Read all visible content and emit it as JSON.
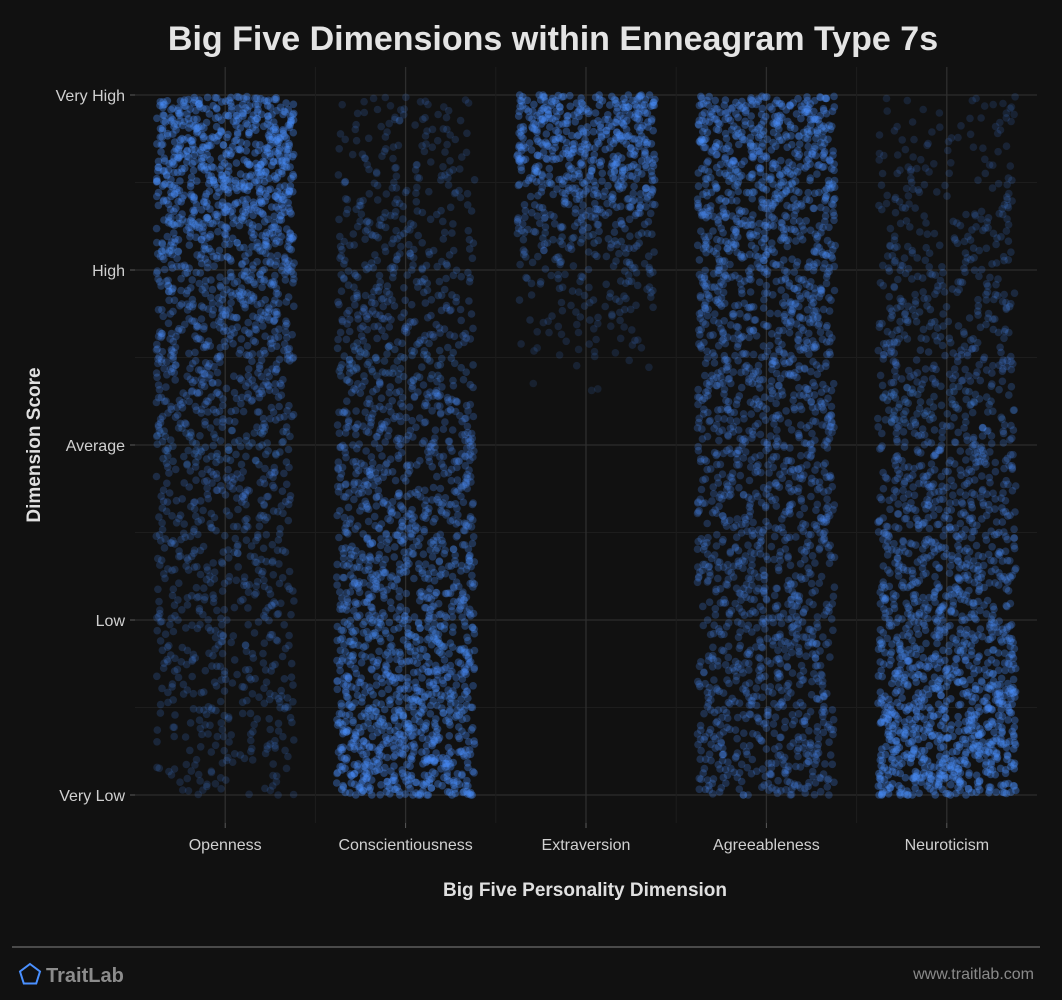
{
  "chart_data": {
    "type": "scatter",
    "title": "Big Five Dimensions within Enneagram Type 7s",
    "xlabel": "Big Five Personality Dimension",
    "ylabel": "Dimension Score",
    "categories": [
      "Openness",
      "Conscientiousness",
      "Extraversion",
      "Agreeableness",
      "Neuroticism"
    ],
    "y_ticks": [
      "Very Low",
      "Low",
      "Average",
      "High",
      "Very High"
    ],
    "ylim": [
      0,
      4
    ],
    "grid": true,
    "point_color": "#4a90ff",
    "series": [
      {
        "category": "Openness",
        "range": [
          0,
          4
        ],
        "density_profile": [
          [
            0,
            0.15
          ],
          [
            0.6,
            0.3
          ],
          [
            1.5,
            0.35
          ],
          [
            2.2,
            0.5
          ],
          [
            3.0,
            0.7
          ],
          [
            3.5,
            1.0
          ],
          [
            4,
            1.0
          ]
        ]
      },
      {
        "category": "Conscientiousness",
        "range": [
          0,
          4
        ],
        "density_profile": [
          [
            0,
            1.0
          ],
          [
            0.3,
            0.9
          ],
          [
            1.0,
            0.75
          ],
          [
            2.0,
            0.55
          ],
          [
            3.0,
            0.35
          ],
          [
            3.6,
            0.2
          ],
          [
            4,
            0.15
          ]
        ]
      },
      {
        "category": "Extraversion",
        "range": [
          1.95,
          4
        ],
        "density_profile": [
          [
            1.95,
            0.02
          ],
          [
            2.3,
            0.05
          ],
          [
            2.7,
            0.15
          ],
          [
            3.0,
            0.3
          ],
          [
            3.3,
            0.55
          ],
          [
            3.6,
            0.9
          ],
          [
            4,
            1.0
          ]
        ]
      },
      {
        "category": "Agreeableness",
        "range": [
          0,
          4
        ],
        "density_profile": [
          [
            0,
            0.55
          ],
          [
            1.0,
            0.5
          ],
          [
            2.0,
            0.55
          ],
          [
            3.0,
            0.65
          ],
          [
            3.6,
            0.8
          ],
          [
            4,
            0.95
          ]
        ]
      },
      {
        "category": "Neuroticism",
        "range": [
          0,
          4
        ],
        "density_profile": [
          [
            0,
            1.0
          ],
          [
            0.35,
            1.0
          ],
          [
            1.0,
            0.7
          ],
          [
            2.0,
            0.5
          ],
          [
            3.0,
            0.3
          ],
          [
            3.6,
            0.15
          ],
          [
            4,
            0.1
          ]
        ]
      }
    ]
  },
  "footer": {
    "brand": "TraitLab",
    "url": "www.traitlab.com",
    "brand_color": "#4a90ff"
  }
}
